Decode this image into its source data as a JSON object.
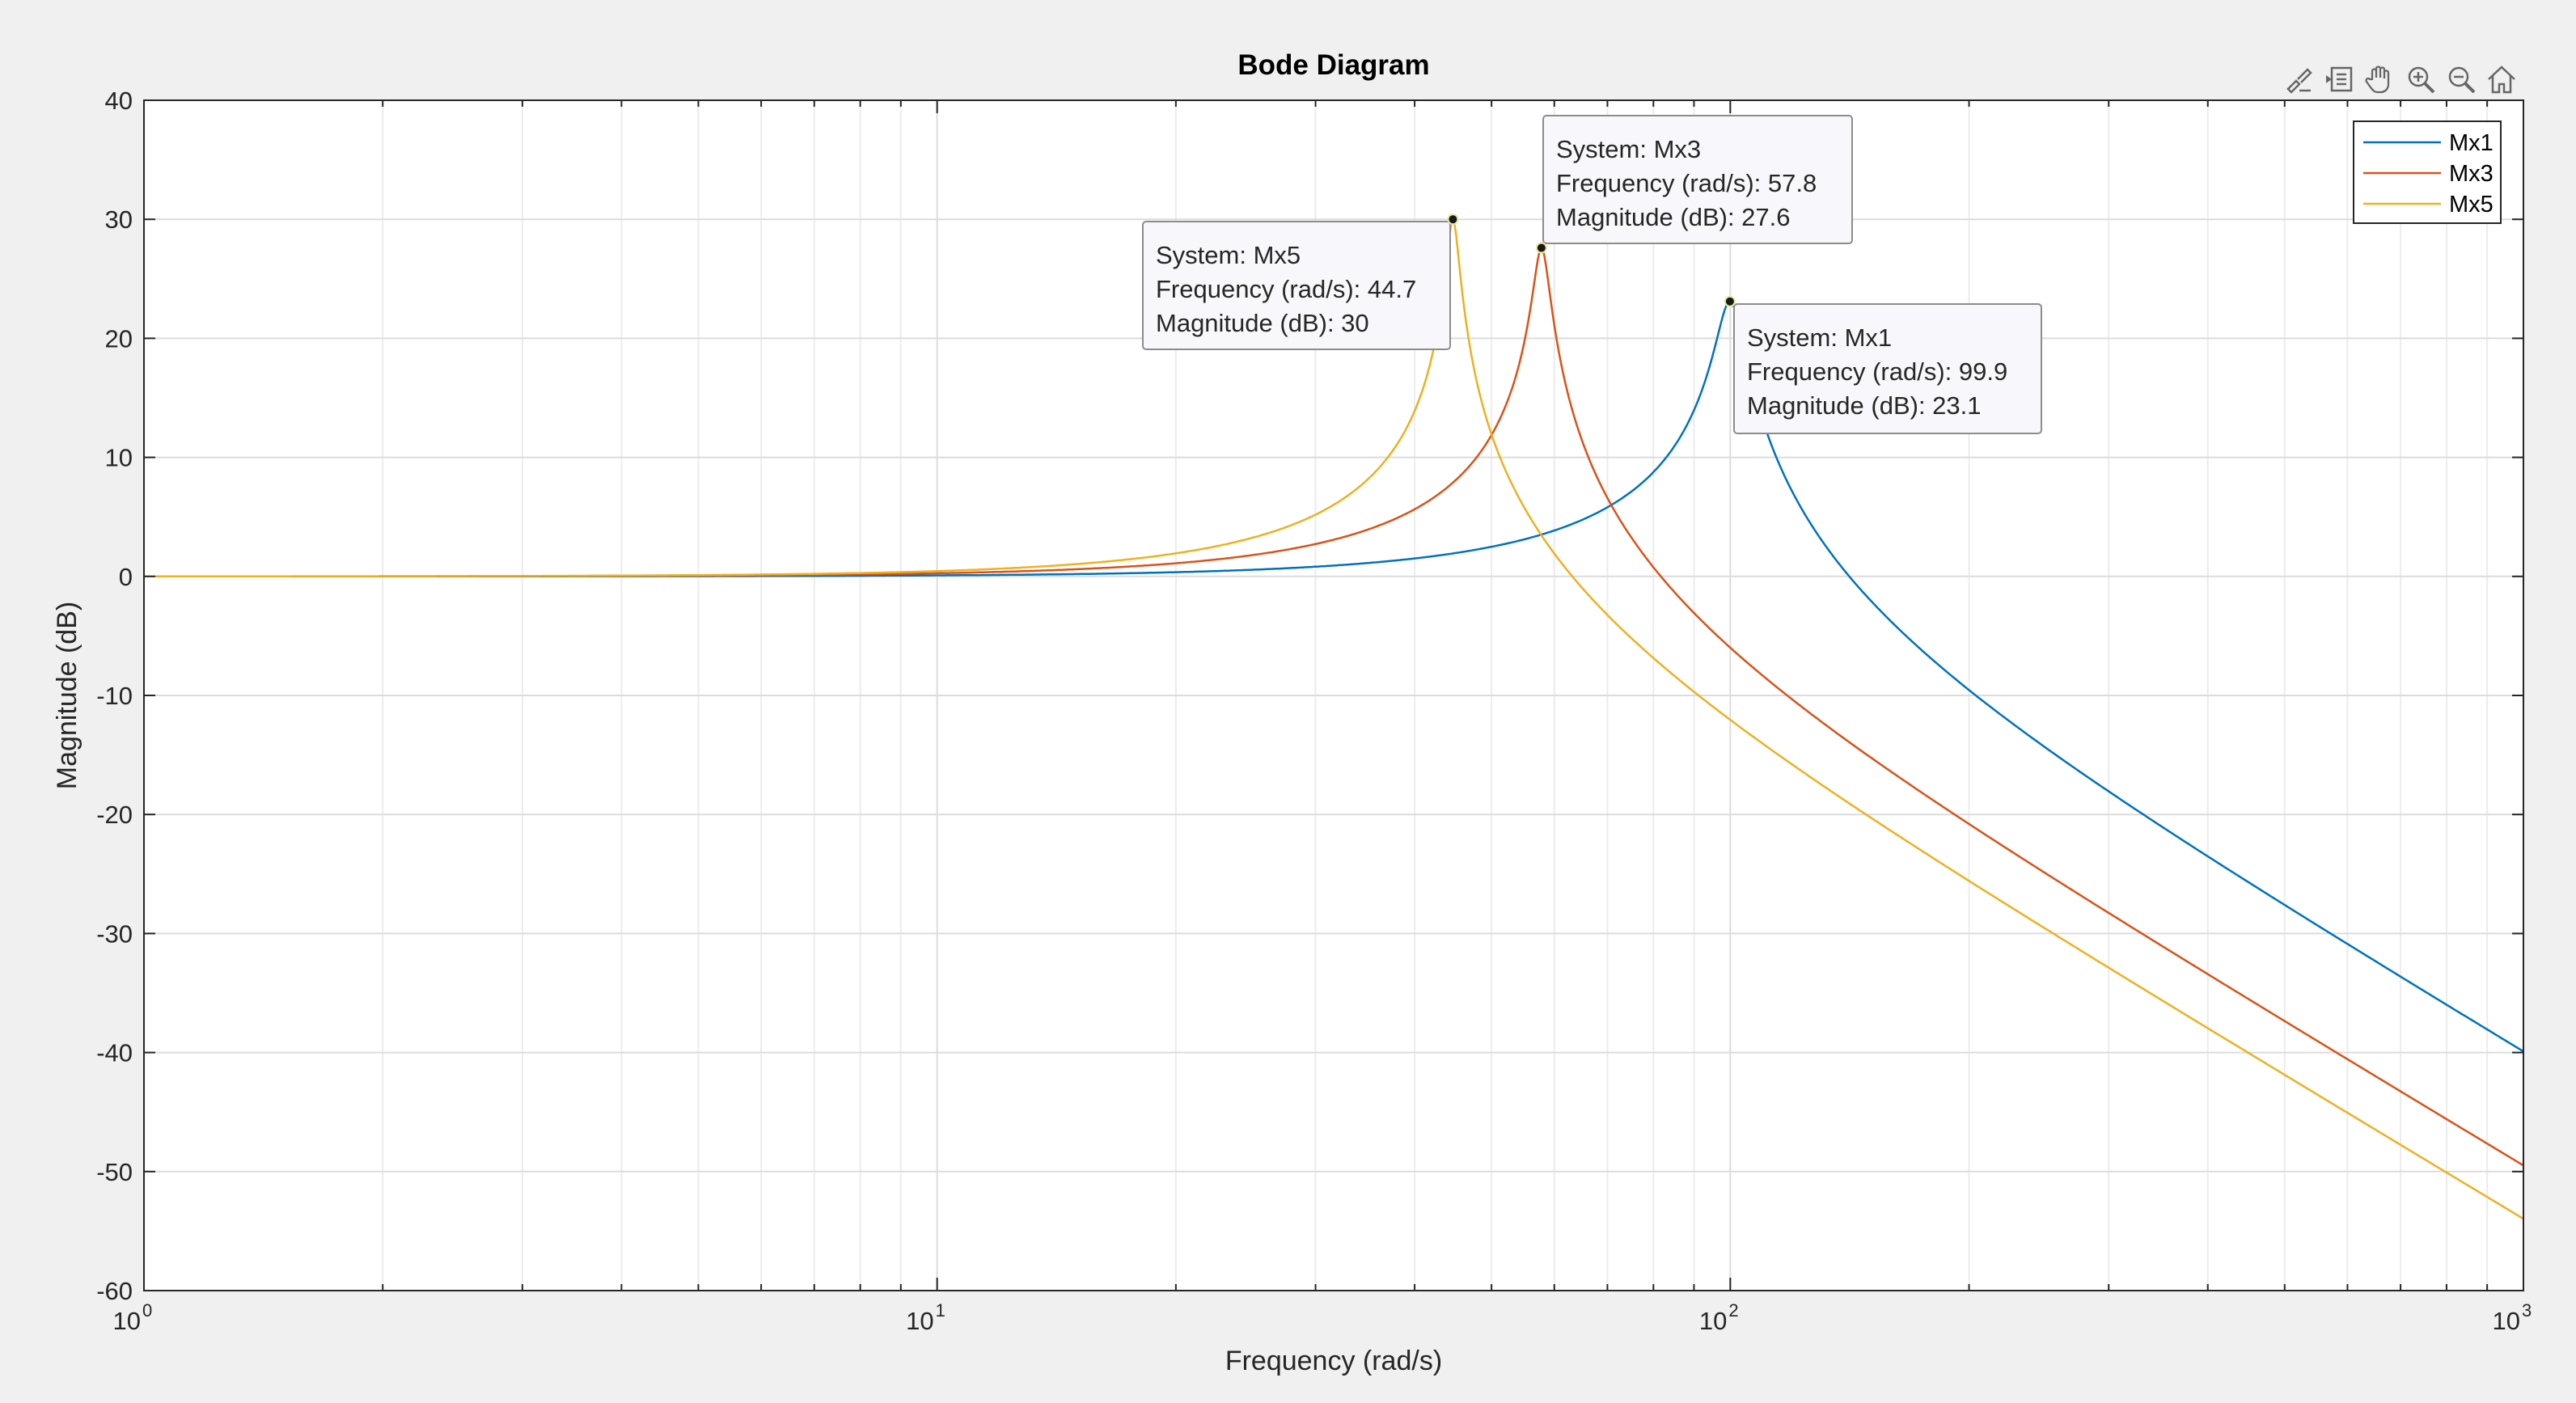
{
  "toolbar": {
    "icons": [
      "brush-icon",
      "data-tips-icon",
      "pan-hand-icon",
      "zoom-in-icon",
      "zoom-out-icon",
      "home-icon"
    ]
  },
  "chart_data": {
    "type": "line",
    "title": "Bode Diagram",
    "xlabel": "Frequency  (rad/s)",
    "ylabel": "Magnitude (dB)",
    "xscale": "log",
    "xlim": [
      1,
      1000
    ],
    "ylim": [
      -60,
      40
    ],
    "yticks": [
      40,
      30,
      20,
      10,
      0,
      -10,
      -20,
      -30,
      -40,
      -50,
      -60
    ],
    "xticks": [
      {
        "value": 1,
        "base": "10",
        "exp": "0"
      },
      {
        "value": 10,
        "base": "10",
        "exp": "1"
      },
      {
        "value": 100,
        "base": "10",
        "exp": "2"
      },
      {
        "value": 1000,
        "base": "10",
        "exp": "3"
      }
    ],
    "grid": true,
    "legend_position": "top-right",
    "series": [
      {
        "name": "Mx1",
        "color": "#0072BD",
        "peak_frequency": 99.9,
        "peak_magnitude": 23.1
      },
      {
        "name": "Mx3",
        "color": "#D95319",
        "peak_frequency": 57.8,
        "peak_magnitude": 27.6
      },
      {
        "name": "Mx5",
        "color": "#EDB120",
        "peak_frequency": 44.7,
        "peak_magnitude": 30
      }
    ],
    "datatips": [
      {
        "system_label": "System: Mx5",
        "frequency_label": "Frequency (rad/s): 44.7",
        "magnitude_label": "Magnitude (dB): 30",
        "series": 2
      },
      {
        "system_label": "System: Mx3",
        "frequency_label": "Frequency (rad/s): 57.8",
        "magnitude_label": "Magnitude (dB): 27.6",
        "series": 1
      },
      {
        "system_label": "System: Mx1",
        "frequency_label": "Frequency (rad/s): 99.9",
        "magnitude_label": "Magnitude (dB): 23.1",
        "series": 0
      }
    ]
  }
}
